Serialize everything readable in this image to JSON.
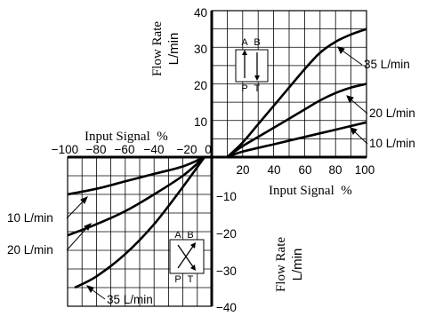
{
  "chart_data": {
    "type": "line",
    "x_axis": {
      "label": "Input Signal  %",
      "range": [
        -100,
        100
      ],
      "ticks_negative": [
        "−100",
        "−80",
        "−60",
        "−40",
        "−20",
        "0"
      ],
      "ticks_positive": [
        "20",
        "40",
        "60",
        "80",
        "100"
      ]
    },
    "y_axis": {
      "label_top": [
        "Flow Rate",
        "L/min"
      ],
      "label_bottom": [
        "Flow Rate",
        "L/min"
      ],
      "range": [
        -40,
        40
      ],
      "ticks_positive": [
        "10",
        "20",
        "30",
        "40"
      ],
      "ticks_negative": [
        "−10",
        "−20",
        "−30",
        "−40"
      ]
    },
    "grid": true,
    "valve_symbol_top": {
      "ports_top": [
        "A",
        "B"
      ],
      "ports_bottom": [
        "P",
        "T"
      ]
    },
    "valve_symbol_bottom": {
      "ports_top": [
        "A",
        "B"
      ],
      "ports_bottom": [
        "P",
        "T"
      ]
    },
    "series": [
      {
        "label": "35 L/min",
        "positive": [
          [
            10,
            0
          ],
          [
            20,
            4
          ],
          [
            30,
            9
          ],
          [
            40,
            14
          ],
          [
            50,
            19
          ],
          [
            60,
            24
          ],
          [
            70,
            28.5
          ],
          [
            80,
            31.5
          ],
          [
            90,
            33.5
          ],
          [
            100,
            35
          ]
        ],
        "negative": [
          [
            -5,
            0
          ],
          [
            -20,
            -8
          ],
          [
            -40,
            -18
          ],
          [
            -60,
            -26
          ],
          [
            -80,
            -32
          ],
          [
            -95,
            -35
          ]
        ]
      },
      {
        "label": "20 L/min",
        "positive": [
          [
            10,
            0
          ],
          [
            20,
            3
          ],
          [
            30,
            5.5
          ],
          [
            40,
            8
          ],
          [
            50,
            10.5
          ],
          [
            60,
            13
          ],
          [
            70,
            15.5
          ],
          [
            80,
            17.5
          ],
          [
            90,
            19
          ],
          [
            100,
            20
          ]
        ],
        "negative": [
          [
            -5,
            0
          ],
          [
            -20,
            -5
          ],
          [
            -40,
            -10
          ],
          [
            -60,
            -14.5
          ],
          [
            -80,
            -18
          ],
          [
            -100,
            -21
          ]
        ]
      },
      {
        "label": "10 L/min",
        "positive": [
          [
            10,
            0
          ],
          [
            20,
            1.5
          ],
          [
            40,
            3.5
          ],
          [
            60,
            5.5
          ],
          [
            80,
            7.5
          ],
          [
            100,
            9.5
          ]
        ],
        "negative": [
          [
            -5,
            0
          ],
          [
            -20,
            -2.5
          ],
          [
            -40,
            -4.5
          ],
          [
            -60,
            -6.5
          ],
          [
            -80,
            -8.5
          ],
          [
            -100,
            -10
          ]
        ]
      }
    ]
  }
}
